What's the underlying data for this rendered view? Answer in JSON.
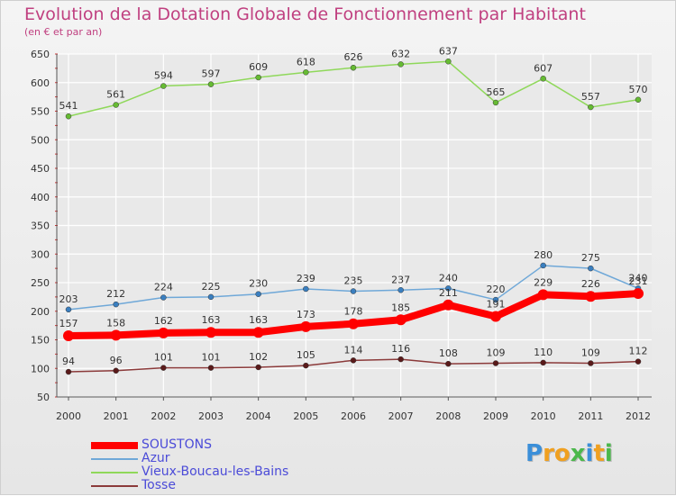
{
  "header": {
    "title": "Evolution de la Dotation Globale de Fonctionnement par Habitant",
    "subtitle": "(en € et par an)"
  },
  "colors": {
    "title": "#c04080",
    "axis_text": "#333333",
    "grid": "#ffffff",
    "axis": "#555555",
    "legend_text": "#4b4bd8"
  },
  "chart_data": {
    "type": "line",
    "title": "Evolution de la Dotation Globale de Fonctionnement par Habitant",
    "subtitle": "(en € et par an)",
    "xlabel": "",
    "ylabel": "",
    "x": [
      "2000",
      "2001",
      "2002",
      "2003",
      "2004",
      "2005",
      "2006",
      "2007",
      "2008",
      "2009",
      "2010",
      "2011",
      "2012"
    ],
    "ylim": [
      50,
      650
    ],
    "yticks": [
      50,
      100,
      150,
      200,
      250,
      300,
      350,
      400,
      450,
      500,
      550,
      600,
      650
    ],
    "grid": true,
    "legend_position": "bottom-left",
    "series": [
      {
        "name": "Vieux-Boucau-les-Bains",
        "color": "#8fd85a",
        "marker": "#66bb33",
        "thick": false,
        "values": [
          541,
          561,
          594,
          597,
          609,
          618,
          626,
          632,
          637,
          565,
          607,
          557,
          570
        ]
      },
      {
        "name": "Azur",
        "color": "#6fa8d8",
        "marker": "#3a7fc0",
        "thick": false,
        "values": [
          203,
          212,
          224,
          225,
          230,
          239,
          235,
          237,
          240,
          220,
          280,
          275,
          240
        ]
      },
      {
        "name": "SOUSTONS",
        "color": "#ff0000",
        "marker": "#ff0000",
        "thick": true,
        "values": [
          157,
          158,
          162,
          163,
          163,
          173,
          178,
          185,
          211,
          191,
          229,
          226,
          231
        ]
      },
      {
        "name": "Tosse",
        "color": "#8b3a3a",
        "marker": "#5a1a1a",
        "thick": false,
        "values": [
          94,
          96,
          101,
          101,
          102,
          105,
          114,
          116,
          108,
          109,
          110,
          109,
          112
        ]
      }
    ]
  },
  "legend": {
    "items": [
      {
        "label": "SOUSTONS",
        "color": "#ff0000",
        "thick": true
      },
      {
        "label": "Azur",
        "color": "#6fa8d8",
        "thick": false
      },
      {
        "label": "Vieux-Boucau-les-Bains",
        "color": "#8fd85a",
        "thick": false
      },
      {
        "label": "Tosse",
        "color": "#8b3a3a",
        "thick": false
      }
    ]
  },
  "logo": {
    "letters": [
      "P",
      "r",
      "o",
      "x",
      "i",
      "t",
      "i"
    ],
    "colors": [
      "#3b8fd9",
      "#f0a020",
      "#f0a020",
      "#4bb84b",
      "#3b8fd9",
      "#f0a020",
      "#4bb84b"
    ]
  }
}
